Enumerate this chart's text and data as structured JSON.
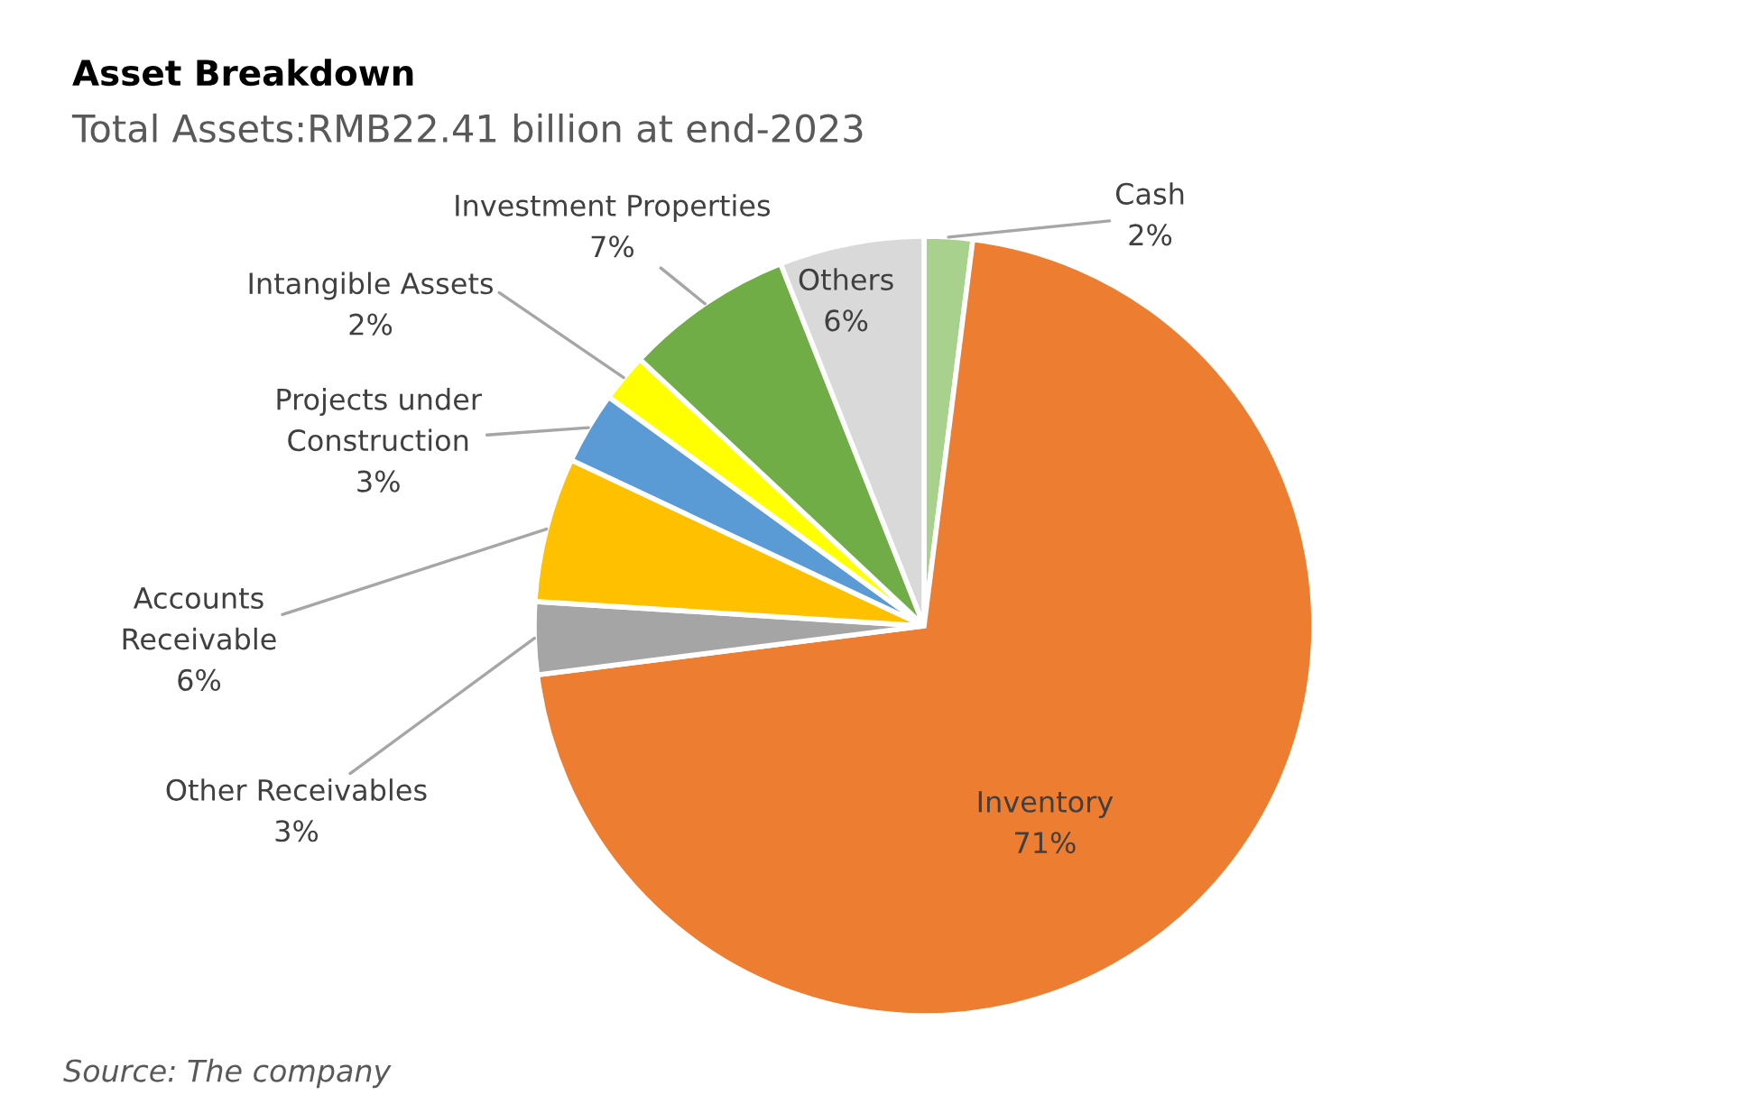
{
  "chart_data": {
    "type": "pie",
    "title": "Asset Breakdown",
    "subtitle": "Total Assets:RMB22.41 billion at end-2023",
    "categories": [
      "Cash",
      "Inventory",
      "Other Receivables",
      "Accounts\nReceivable",
      "Projects under\nConstruction",
      "Intangible Assets",
      "Investment Properties",
      "Others"
    ],
    "values": [
      2,
      71,
      3,
      6,
      3,
      2,
      7,
      6
    ],
    "colors": [
      "#a9d18e",
      "#ed7d31",
      "#a5a5a5",
      "#ffc000",
      "#5b9bd5",
      "#ffff00",
      "#70ad47",
      "#d9d9d9"
    ],
    "value_labels": [
      "2%",
      "71%",
      "3%",
      "6%",
      "3%",
      "2%",
      "7%",
      "6%"
    ],
    "annotations": [
      "Source: The company"
    ],
    "legend": false
  }
}
